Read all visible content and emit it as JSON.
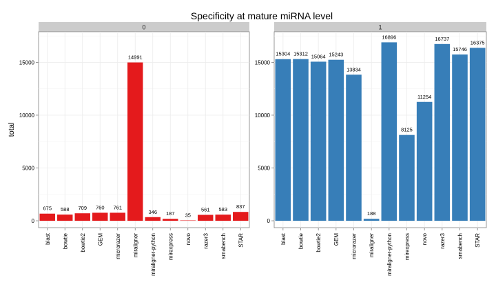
{
  "chart_data": {
    "type": "bar",
    "title": "Specificity at mature miRNA level",
    "xlabel": "",
    "ylabel": "total",
    "ylim": [
      -650,
      17900
    ],
    "yticks": [
      0,
      5000,
      10000,
      15000
    ],
    "grid": true,
    "legend": "none",
    "categories": [
      "blast",
      "bowtie",
      "bowtie2",
      "GEM",
      "microrazer",
      "miraligner",
      "miraligner-python",
      "mirexpress",
      "novo",
      "razer3",
      "srnabench",
      "STAR"
    ],
    "panels": [
      {
        "name": "0",
        "color": "#E41A1C",
        "values": [
          675,
          588,
          709,
          760,
          761,
          14991,
          346,
          187,
          35,
          561,
          583,
          837
        ]
      },
      {
        "name": "1",
        "color": "#377EB8",
        "values": [
          15304,
          15312,
          15064,
          15243,
          13834,
          188,
          16896,
          8125,
          11254,
          16737,
          15746,
          16375
        ]
      }
    ]
  }
}
